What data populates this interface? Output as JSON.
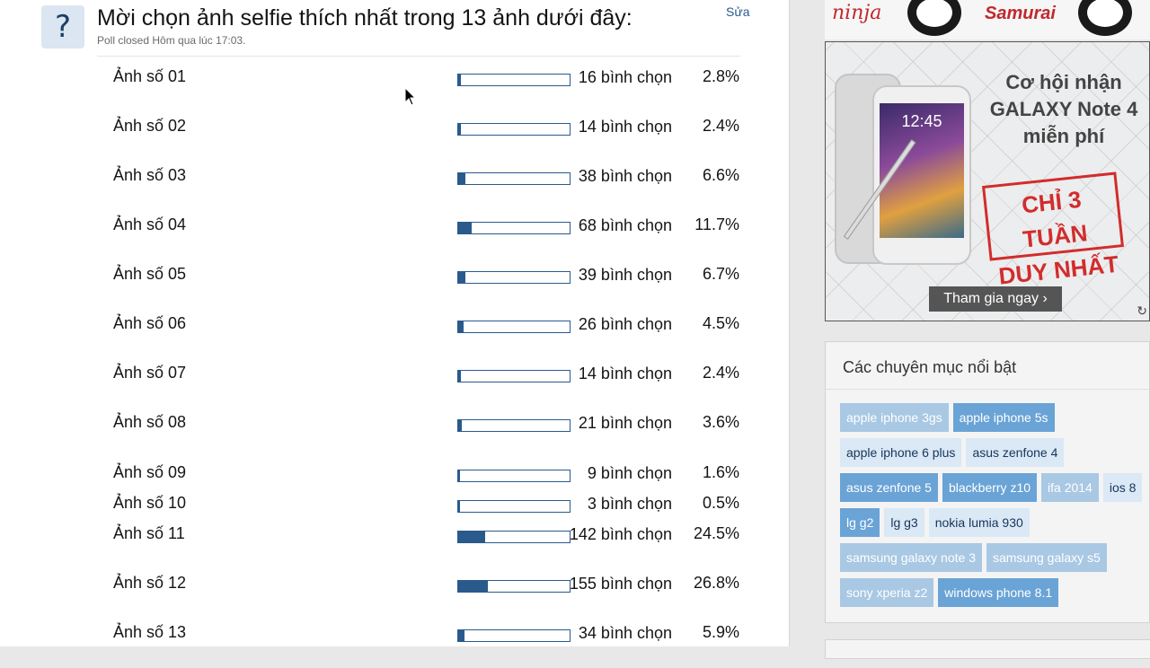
{
  "poll": {
    "title": "Mời chọn ảnh selfie thích nhất trong 13 ảnh dưới đây:",
    "status": "Poll closed Hôm qua lúc 17:03.",
    "edit_label": "Sửa",
    "options": [
      {
        "label": "Ảnh số 01",
        "votes": "16 bình chọn",
        "percent": "2.8%",
        "share": 0.028
      },
      {
        "label": "Ảnh số 02",
        "votes": "14 bình chọn",
        "percent": "2.4%",
        "share": 0.024
      },
      {
        "label": "Ảnh số 03",
        "votes": "38 bình chọn",
        "percent": "6.6%",
        "share": 0.066
      },
      {
        "label": "Ảnh số 04",
        "votes": "68 bình chọn",
        "percent": "11.7%",
        "share": 0.117
      },
      {
        "label": "Ảnh số 05",
        "votes": "39 bình chọn",
        "percent": "6.7%",
        "share": 0.067
      },
      {
        "label": "Ảnh số 06",
        "votes": "26 bình chọn",
        "percent": "4.5%",
        "share": 0.045
      },
      {
        "label": "Ảnh số 07",
        "votes": "14 bình chọn",
        "percent": "2.4%",
        "share": 0.024
      },
      {
        "label": "Ảnh số 08",
        "votes": "21 bình chọn",
        "percent": "3.6%",
        "share": 0.036
      },
      {
        "label": "Ảnh số 09",
        "votes": "9 bình chọn",
        "percent": "1.6%",
        "share": 0.016
      },
      {
        "label": "Ảnh số 10",
        "votes": "3 bình chọn",
        "percent": "0.5%",
        "share": 0.005
      },
      {
        "label": "Ảnh số 11",
        "votes": "142 bình chọn",
        "percent": "24.5%",
        "share": 0.245
      },
      {
        "label": "Ảnh số 12",
        "votes": "155 bình chọn",
        "percent": "26.8%",
        "share": 0.268
      },
      {
        "label": "Ảnh số 13",
        "votes": "34 bình chọn",
        "percent": "5.9%",
        "share": 0.059
      }
    ]
  },
  "ad_top": {
    "brand_left": "ninja",
    "brand_right": "Samurai"
  },
  "ad": {
    "headline_lines": [
      "Cơ hội nhận",
      "GALAXY Note 4",
      "miễn phí"
    ],
    "stamp_lines": [
      "CHỈ 3 TUẦN",
      "DUY NHẤT"
    ],
    "cta": "Tham gia ngay ›",
    "phone_clock": "12:45"
  },
  "topics": {
    "title": "Các chuyên mục nổi bật",
    "tags": [
      {
        "label": "apple iphone 3gs",
        "tone": "t1"
      },
      {
        "label": "apple iphone 5s",
        "tone": "t2"
      },
      {
        "label": "apple iphone 6 plus",
        "tone": "t3"
      },
      {
        "label": "asus zenfone 4",
        "tone": "t3"
      },
      {
        "label": "asus zenfone 5",
        "tone": "t2"
      },
      {
        "label": "blackberry z10",
        "tone": "t2"
      },
      {
        "label": "ifa 2014",
        "tone": "t1"
      },
      {
        "label": "ios 8",
        "tone": "t3"
      },
      {
        "label": "lg g2",
        "tone": "t2"
      },
      {
        "label": "lg g3",
        "tone": "t3"
      },
      {
        "label": "nokia lumia 930",
        "tone": "t3"
      },
      {
        "label": "samsung galaxy note 3",
        "tone": "t1"
      },
      {
        "label": "samsung galaxy s5",
        "tone": "t1"
      },
      {
        "label": "sony xperia z2",
        "tone": "t1"
      },
      {
        "label": "windows phone 8.1",
        "tone": "t2"
      }
    ]
  },
  "colors": {
    "bar": "#2a5a8c",
    "stamp": "#d22c2c"
  }
}
